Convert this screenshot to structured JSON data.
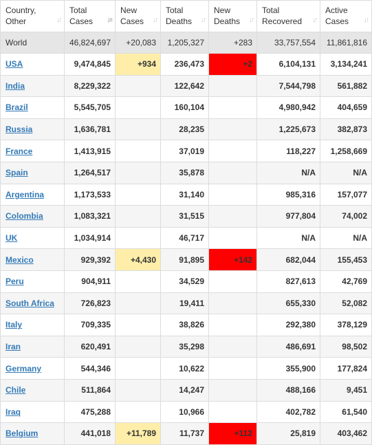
{
  "headers": [
    {
      "line1": "Country,",
      "line2": "Other"
    },
    {
      "line1": "Total",
      "line2": "Cases"
    },
    {
      "line1": "New",
      "line2": "Cases"
    },
    {
      "line1": "Total",
      "line2": "Deaths"
    },
    {
      "line1": "New",
      "line2": "Deaths"
    },
    {
      "line1": "Total",
      "line2": "Recovered"
    },
    {
      "line1": "Active",
      "line2": "Cases"
    }
  ],
  "world": {
    "country": "World",
    "total_cases": "46,824,697",
    "new_cases": "+20,083",
    "total_deaths": "1,205,327",
    "new_deaths": "+283",
    "total_recovered": "33,757,554",
    "active_cases": "11,861,816"
  },
  "rows": [
    {
      "country": "USA",
      "total_cases": "9,474,845",
      "new_cases": "+934",
      "total_deaths": "236,473",
      "new_deaths": "+2",
      "total_recovered": "6,104,131",
      "active_cases": "3,134,241"
    },
    {
      "country": "India",
      "total_cases": "8,229,322",
      "new_cases": "",
      "total_deaths": "122,642",
      "new_deaths": "",
      "total_recovered": "7,544,798",
      "active_cases": "561,882"
    },
    {
      "country": "Brazil",
      "total_cases": "5,545,705",
      "new_cases": "",
      "total_deaths": "160,104",
      "new_deaths": "",
      "total_recovered": "4,980,942",
      "active_cases": "404,659"
    },
    {
      "country": "Russia",
      "total_cases": "1,636,781",
      "new_cases": "",
      "total_deaths": "28,235",
      "new_deaths": "",
      "total_recovered": "1,225,673",
      "active_cases": "382,873"
    },
    {
      "country": "France",
      "total_cases": "1,413,915",
      "new_cases": "",
      "total_deaths": "37,019",
      "new_deaths": "",
      "total_recovered": "118,227",
      "active_cases": "1,258,669"
    },
    {
      "country": "Spain",
      "total_cases": "1,264,517",
      "new_cases": "",
      "total_deaths": "35,878",
      "new_deaths": "",
      "total_recovered": "N/A",
      "active_cases": "N/A"
    },
    {
      "country": "Argentina",
      "total_cases": "1,173,533",
      "new_cases": "",
      "total_deaths": "31,140",
      "new_deaths": "",
      "total_recovered": "985,316",
      "active_cases": "157,077"
    },
    {
      "country": "Colombia",
      "total_cases": "1,083,321",
      "new_cases": "",
      "total_deaths": "31,515",
      "new_deaths": "",
      "total_recovered": "977,804",
      "active_cases": "74,002"
    },
    {
      "country": "UK",
      "total_cases": "1,034,914",
      "new_cases": "",
      "total_deaths": "46,717",
      "new_deaths": "",
      "total_recovered": "N/A",
      "active_cases": "N/A"
    },
    {
      "country": "Mexico",
      "total_cases": "929,392",
      "new_cases": "+4,430",
      "total_deaths": "91,895",
      "new_deaths": "+142",
      "total_recovered": "682,044",
      "active_cases": "155,453"
    },
    {
      "country": "Peru",
      "total_cases": "904,911",
      "new_cases": "",
      "total_deaths": "34,529",
      "new_deaths": "",
      "total_recovered": "827,613",
      "active_cases": "42,769"
    },
    {
      "country": "South Africa",
      "total_cases": "726,823",
      "new_cases": "",
      "total_deaths": "19,411",
      "new_deaths": "",
      "total_recovered": "655,330",
      "active_cases": "52,082"
    },
    {
      "country": "Italy",
      "total_cases": "709,335",
      "new_cases": "",
      "total_deaths": "38,826",
      "new_deaths": "",
      "total_recovered": "292,380",
      "active_cases": "378,129"
    },
    {
      "country": "Iran",
      "total_cases": "620,491",
      "new_cases": "",
      "total_deaths": "35,298",
      "new_deaths": "",
      "total_recovered": "486,691",
      "active_cases": "98,502"
    },
    {
      "country": "Germany",
      "total_cases": "544,346",
      "new_cases": "",
      "total_deaths": "10,622",
      "new_deaths": "",
      "total_recovered": "355,900",
      "active_cases": "177,824"
    },
    {
      "country": "Chile",
      "total_cases": "511,864",
      "new_cases": "",
      "total_deaths": "14,247",
      "new_deaths": "",
      "total_recovered": "488,166",
      "active_cases": "9,451"
    },
    {
      "country": "Iraq",
      "total_cases": "475,288",
      "new_cases": "",
      "total_deaths": "10,966",
      "new_deaths": "",
      "total_recovered": "402,782",
      "active_cases": "61,540"
    },
    {
      "country": "Belgium",
      "total_cases": "441,018",
      "new_cases": "+11,789",
      "total_deaths": "11,737",
      "new_deaths": "+112",
      "total_recovered": "25,819",
      "active_cases": "403,462"
    }
  ],
  "colors": {
    "new_cases_highlight": "#ffeeaa",
    "new_deaths_highlight": "#ff0000",
    "world_row": "#e6e6e6",
    "link": "#337ab7"
  },
  "sort_icons": [
    "sort-both-icon",
    "sort-both-icon",
    "sort-both-icon",
    "sort-both-icon",
    "sort-both-icon",
    "sort-both-icon",
    "sort-both-icon"
  ],
  "active_sort_column": 1
}
